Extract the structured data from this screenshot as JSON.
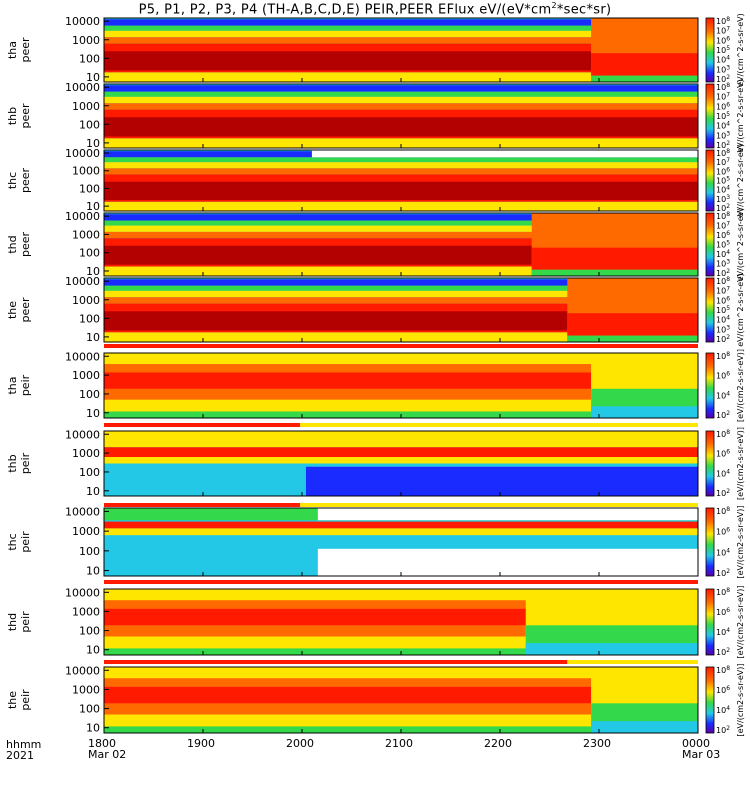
{
  "title": {
    "main": "P5, P1, P2, P3, P4 (TH-A,B,C,D,E) PEIR,PEER EFlux eV/(eV*cm",
    "sup": "2",
    "tail": "*sec*sr)"
  },
  "footer": {
    "row1": "hhmm",
    "row2": "2021"
  },
  "colors": {
    "dark_red": "#b30000",
    "red": "#ff1a00",
    "orange": "#ff6a00",
    "yellow": "#ffe600",
    "green": "#33d94a",
    "cyan": "#22c8e6",
    "blue": "#1a2bff",
    "purple": "#5a00a8",
    "white": "#ffffff"
  },
  "chart_data": {
    "type": "heatmap",
    "x_axis": {
      "range": [
        "18:00",
        "24:00"
      ],
      "ticks": [
        {
          "hhmm": "1800",
          "date": "Mar 02"
        },
        {
          "hhmm": "1900",
          "date": ""
        },
        {
          "hhmm": "2000",
          "date": ""
        },
        {
          "hhmm": "2100",
          "date": ""
        },
        {
          "hhmm": "2200",
          "date": ""
        },
        {
          "hhmm": "2300",
          "date": ""
        },
        {
          "hhmm": "0000",
          "date": "Mar 03"
        }
      ]
    },
    "y_axis": {
      "scale": "log",
      "ticks": [
        "10",
        "100",
        "1000",
        "10000"
      ]
    },
    "colorbar": {
      "scale": "log",
      "unit_label_electron": "eV/(cm^2-s-sr-eV)",
      "unit_label_ion": "[eV/(cm2-s-sr-eV)]",
      "ticks_electron": [
        "10^2",
        "10^3",
        "10^4",
        "10^5",
        "10^6",
        "10^7",
        "10^8"
      ],
      "ticks_ion": [
        "10^2",
        "10^4",
        "10^6",
        "10^8"
      ]
    },
    "panels": [
      {
        "probe": "tha",
        "species": "peer",
        "line1": "tha",
        "line2": "peer"
      },
      {
        "probe": "thb",
        "species": "peer",
        "line1": "thb",
        "line2": "peer"
      },
      {
        "probe": "thc",
        "species": "peer",
        "line1": "thc",
        "line2": "peer"
      },
      {
        "probe": "thd",
        "species": "peer",
        "line1": "thd",
        "line2": "peer"
      },
      {
        "probe": "the",
        "species": "peer",
        "line1": "the",
        "line2": "peer"
      },
      {
        "probe": "tha",
        "species": "peir",
        "line1": "tha",
        "line2": "peir"
      },
      {
        "probe": "thb",
        "species": "peir",
        "line1": "thb",
        "line2": "peir"
      },
      {
        "probe": "thc",
        "species": "peir",
        "line1": "thc",
        "line2": "peir"
      },
      {
        "probe": "thd",
        "species": "peir",
        "line1": "thd",
        "line2": "peir"
      },
      {
        "probe": "the",
        "species": "peir",
        "line1": "the",
        "line2": "peir"
      }
    ]
  }
}
